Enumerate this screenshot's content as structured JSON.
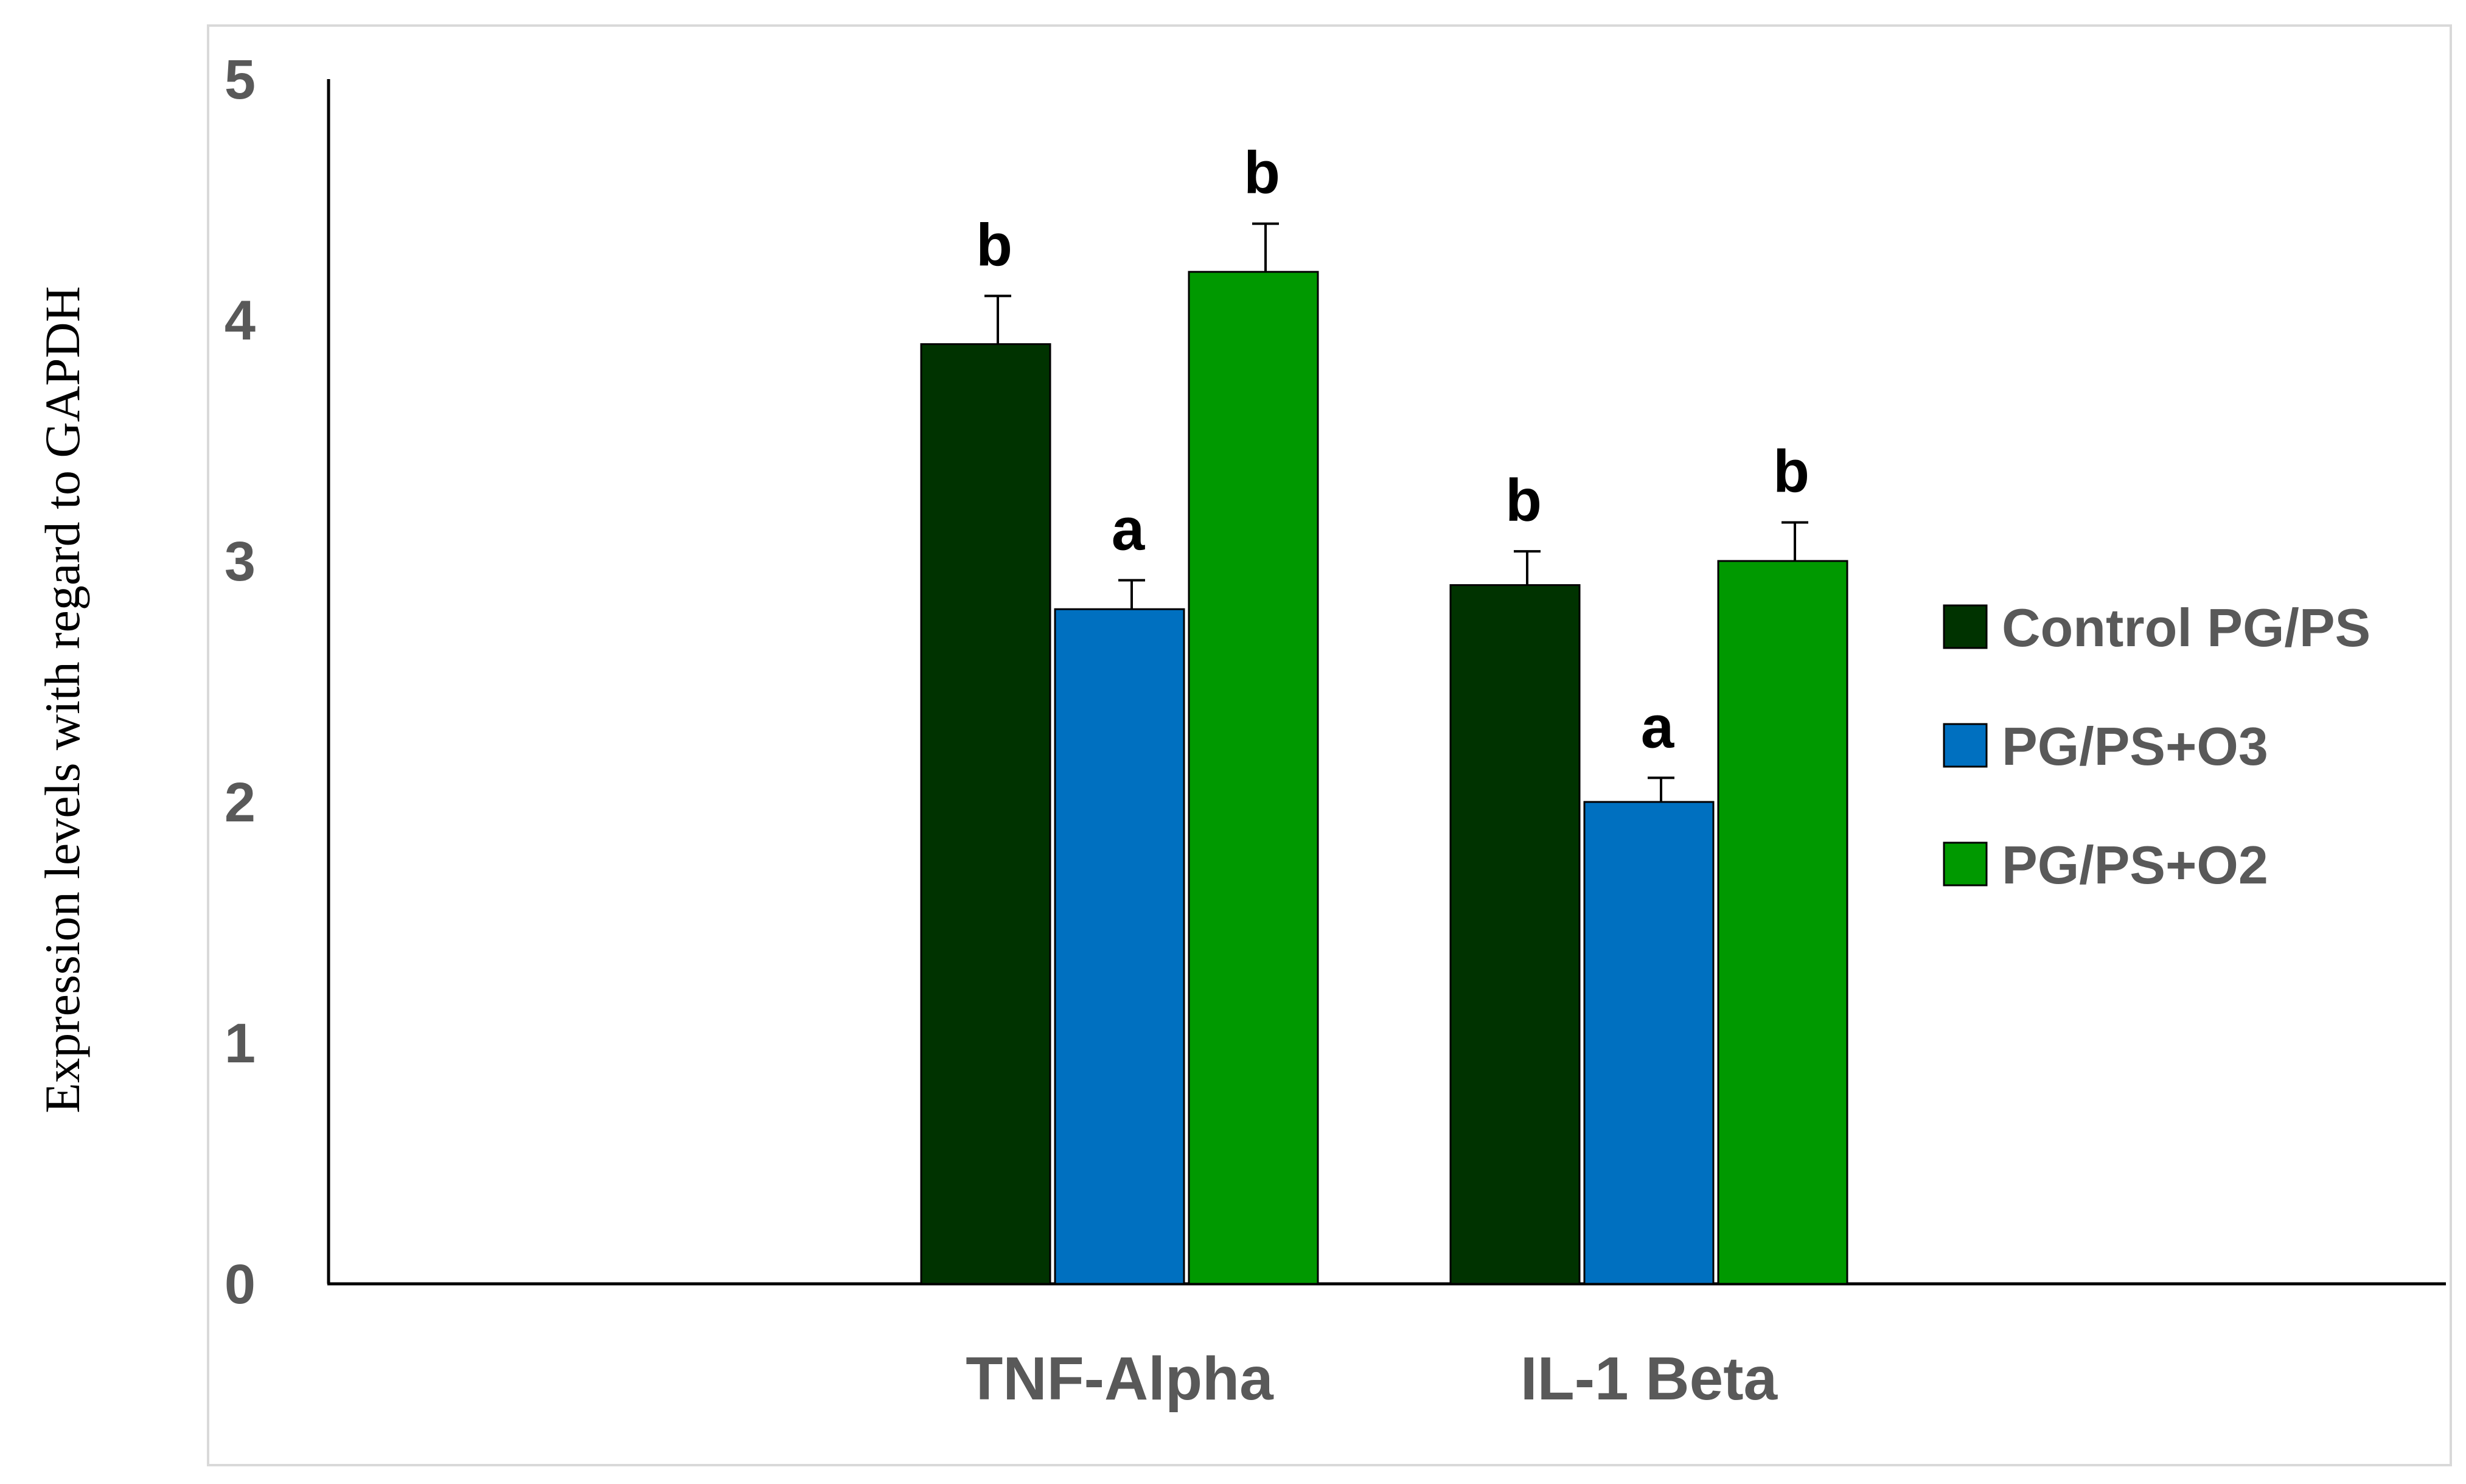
{
  "chart_data": {
    "type": "bar",
    "title": "",
    "xlabel": "",
    "ylabel": "Expression levels with regard to GAPDH",
    "categories": [
      "TNF-Alpha",
      "IL-1 Beta"
    ],
    "series": [
      {
        "name": "Control PG/PS",
        "color": "#003300",
        "values": [
          3.9,
          2.9
        ],
        "errors": [
          0.2,
          0.14
        ],
        "labels": [
          "b",
          "b"
        ]
      },
      {
        "name": "PG/PS+O3",
        "color": "#0070c0",
        "values": [
          2.8,
          2.0
        ],
        "errors": [
          0.12,
          0.1
        ],
        "labels": [
          "a",
          "a"
        ]
      },
      {
        "name": "PG/PS+O2",
        "color": "#009900",
        "values": [
          4.2,
          3.0
        ],
        "errors": [
          0.2,
          0.16
        ],
        "labels": [
          "b",
          "b"
        ]
      }
    ],
    "ylim": [
      0,
      5
    ],
    "yticks": [
      "0",
      "1",
      "2",
      "3",
      "4",
      "5"
    ],
    "grid": false,
    "legend": "right"
  }
}
